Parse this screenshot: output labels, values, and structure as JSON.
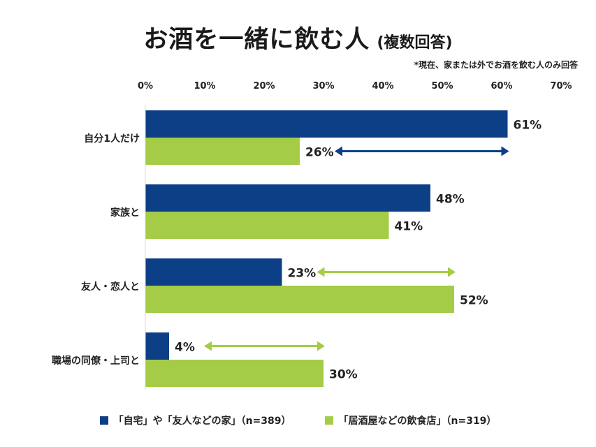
{
  "chart_data": {
    "type": "bar",
    "orientation": "horizontal",
    "title": "お酒を一緒に飲む人",
    "subtitle": "(複数回答)",
    "note": "*現在、家または外でお酒を飲む人のみ回答",
    "categories": [
      "自分1人だけ",
      "家族と",
      "友人・恋人と",
      "職場の同僚・上司と"
    ],
    "series": [
      {
        "name": "「自宅」や「友人などの家」（n=389）",
        "values": [
          61,
          48,
          23,
          4
        ],
        "color": "#0d3f86"
      },
      {
        "name": "「居酒屋などの飲食店」（n=319）",
        "values": [
          26,
          41,
          52,
          30
        ],
        "color": "#a4cc47"
      }
    ],
    "value_suffix": "%",
    "xlim": [
      0,
      70
    ],
    "xticks": [
      "0%",
      "10%",
      "20%",
      "30%",
      "40%",
      "50%",
      "60%",
      "70%"
    ],
    "grid": false,
    "legend_position": "bottom",
    "annotations": [
      {
        "type": "double-arrow",
        "category": "自分1人だけ",
        "from": 26,
        "to": 61,
        "color": "#0d3f86"
      },
      {
        "type": "double-arrow",
        "category": "友人・恋人と",
        "from": 23,
        "to": 52,
        "color": "#a4cc47"
      },
      {
        "type": "double-arrow",
        "category": "職場の同僚・上司と",
        "from": 4,
        "to": 30,
        "color": "#a4cc47"
      }
    ]
  }
}
